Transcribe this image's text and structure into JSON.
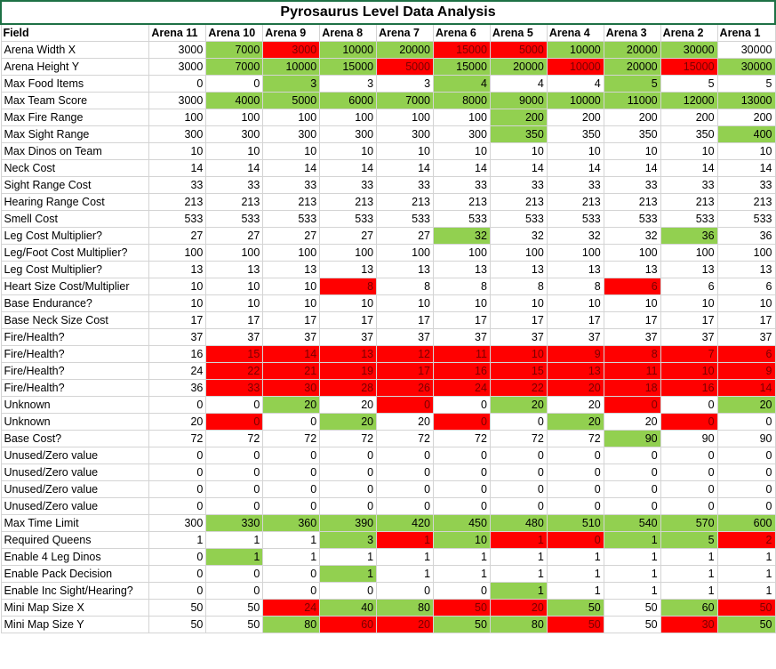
{
  "title": "Pyrosaurus Level Data Analysis",
  "colors": {
    "green": "#92d050",
    "red": "#ff0000",
    "white": "#ffffff"
  },
  "headers": [
    "Field",
    "Arena 11",
    "Arena 10",
    "Arena 9",
    "Arena 8",
    "Arena 7",
    "Arena 6",
    "Arena 5",
    "Arena 4",
    "Arena 3",
    "Arena 2",
    "Arena 1"
  ],
  "rows": [
    {
      "label": "Arena Width X",
      "values": [
        "3000",
        "7000",
        "3000",
        "10000",
        "20000",
        "15000",
        "5000",
        "10000",
        "20000",
        "30000",
        "30000"
      ],
      "fills": [
        "w",
        "g",
        "r",
        "g",
        "g",
        "r",
        "r",
        "g",
        "g",
        "g",
        "w"
      ]
    },
    {
      "label": "Arena Height Y",
      "values": [
        "3000",
        "7000",
        "10000",
        "15000",
        "5000",
        "15000",
        "20000",
        "10000",
        "20000",
        "15000",
        "30000"
      ],
      "fills": [
        "w",
        "g",
        "g",
        "g",
        "r",
        "g",
        "g",
        "r",
        "g",
        "r",
        "g"
      ]
    },
    {
      "label": "Max Food Items",
      "values": [
        "0",
        "0",
        "3",
        "3",
        "3",
        "4",
        "4",
        "4",
        "5",
        "5",
        "5"
      ],
      "fills": [
        "w",
        "w",
        "g",
        "w",
        "w",
        "g",
        "w",
        "w",
        "g",
        "w",
        "w"
      ]
    },
    {
      "label": "Max Team Score",
      "values": [
        "3000",
        "4000",
        "5000",
        "6000",
        "7000",
        "8000",
        "9000",
        "10000",
        "11000",
        "12000",
        "13000"
      ],
      "fills": [
        "w",
        "g",
        "g",
        "g",
        "g",
        "g",
        "g",
        "g",
        "g",
        "g",
        "g"
      ]
    },
    {
      "label": "Max Fire Range",
      "values": [
        "100",
        "100",
        "100",
        "100",
        "100",
        "100",
        "200",
        "200",
        "200",
        "200",
        "200"
      ],
      "fills": [
        "w",
        "w",
        "w",
        "w",
        "w",
        "w",
        "g",
        "w",
        "w",
        "w",
        "w"
      ]
    },
    {
      "label": "Max Sight Range",
      "values": [
        "300",
        "300",
        "300",
        "300",
        "300",
        "300",
        "350",
        "350",
        "350",
        "350",
        "400"
      ],
      "fills": [
        "w",
        "w",
        "w",
        "w",
        "w",
        "w",
        "g",
        "w",
        "w",
        "w",
        "g"
      ]
    },
    {
      "label": "Max Dinos on Team",
      "values": [
        "10",
        "10",
        "10",
        "10",
        "10",
        "10",
        "10",
        "10",
        "10",
        "10",
        "10"
      ],
      "fills": [
        "w",
        "w",
        "w",
        "w",
        "w",
        "w",
        "w",
        "w",
        "w",
        "w",
        "w"
      ]
    },
    {
      "label": "Neck Cost",
      "values": [
        "14",
        "14",
        "14",
        "14",
        "14",
        "14",
        "14",
        "14",
        "14",
        "14",
        "14"
      ],
      "fills": [
        "w",
        "w",
        "w",
        "w",
        "w",
        "w",
        "w",
        "w",
        "w",
        "w",
        "w"
      ]
    },
    {
      "label": "Sight Range Cost",
      "values": [
        "33",
        "33",
        "33",
        "33",
        "33",
        "33",
        "33",
        "33",
        "33",
        "33",
        "33"
      ],
      "fills": [
        "w",
        "w",
        "w",
        "w",
        "w",
        "w",
        "w",
        "w",
        "w",
        "w",
        "w"
      ]
    },
    {
      "label": "Hearing Range Cost",
      "values": [
        "213",
        "213",
        "213",
        "213",
        "213",
        "213",
        "213",
        "213",
        "213",
        "213",
        "213"
      ],
      "fills": [
        "w",
        "w",
        "w",
        "w",
        "w",
        "w",
        "w",
        "w",
        "w",
        "w",
        "w"
      ]
    },
    {
      "label": "Smell Cost",
      "values": [
        "533",
        "533",
        "533",
        "533",
        "533",
        "533",
        "533",
        "533",
        "533",
        "533",
        "533"
      ],
      "fills": [
        "w",
        "w",
        "w",
        "w",
        "w",
        "w",
        "w",
        "w",
        "w",
        "w",
        "w"
      ]
    },
    {
      "label": "Leg Cost Multiplier?",
      "values": [
        "27",
        "27",
        "27",
        "27",
        "27",
        "32",
        "32",
        "32",
        "32",
        "36",
        "36"
      ],
      "fills": [
        "w",
        "w",
        "w",
        "w",
        "w",
        "g",
        "w",
        "w",
        "w",
        "g",
        "w"
      ]
    },
    {
      "label": "Leg/Foot Cost Multiplier?",
      "values": [
        "100",
        "100",
        "100",
        "100",
        "100",
        "100",
        "100",
        "100",
        "100",
        "100",
        "100"
      ],
      "fills": [
        "w",
        "w",
        "w",
        "w",
        "w",
        "w",
        "w",
        "w",
        "w",
        "w",
        "w"
      ]
    },
    {
      "label": "Leg Cost Multiplier?",
      "values": [
        "13",
        "13",
        "13",
        "13",
        "13",
        "13",
        "13",
        "13",
        "13",
        "13",
        "13"
      ],
      "fills": [
        "w",
        "w",
        "w",
        "w",
        "w",
        "w",
        "w",
        "w",
        "w",
        "w",
        "w"
      ]
    },
    {
      "label": "Heart Size Cost/Multiplier",
      "values": [
        "10",
        "10",
        "10",
        "8",
        "8",
        "8",
        "8",
        "8",
        "6",
        "6",
        "6"
      ],
      "fills": [
        "w",
        "w",
        "w",
        "r",
        "w",
        "w",
        "w",
        "w",
        "r",
        "w",
        "w"
      ]
    },
    {
      "label": "Base Endurance?",
      "values": [
        "10",
        "10",
        "10",
        "10",
        "10",
        "10",
        "10",
        "10",
        "10",
        "10",
        "10"
      ],
      "fills": [
        "w",
        "w",
        "w",
        "w",
        "w",
        "w",
        "w",
        "w",
        "w",
        "w",
        "w"
      ]
    },
    {
      "label": "Base Neck Size Cost",
      "values": [
        "17",
        "17",
        "17",
        "17",
        "17",
        "17",
        "17",
        "17",
        "17",
        "17",
        "17"
      ],
      "fills": [
        "w",
        "w",
        "w",
        "w",
        "w",
        "w",
        "w",
        "w",
        "w",
        "w",
        "w"
      ]
    },
    {
      "label": "Fire/Health?",
      "values": [
        "37",
        "37",
        "37",
        "37",
        "37",
        "37",
        "37",
        "37",
        "37",
        "37",
        "37"
      ],
      "fills": [
        "w",
        "w",
        "w",
        "w",
        "w",
        "w",
        "w",
        "w",
        "w",
        "w",
        "w"
      ]
    },
    {
      "label": "Fire/Health?",
      "values": [
        "16",
        "15",
        "14",
        "13",
        "12",
        "11",
        "10",
        "9",
        "8",
        "7",
        "6"
      ],
      "fills": [
        "w",
        "r",
        "r",
        "r",
        "r",
        "r",
        "r",
        "r",
        "r",
        "r",
        "r"
      ]
    },
    {
      "label": "Fire/Health?",
      "values": [
        "24",
        "22",
        "21",
        "19",
        "17",
        "16",
        "15",
        "13",
        "11",
        "10",
        "9"
      ],
      "fills": [
        "w",
        "r",
        "r",
        "r",
        "r",
        "r",
        "r",
        "r",
        "r",
        "r",
        "r"
      ]
    },
    {
      "label": "Fire/Health?",
      "values": [
        "36",
        "33",
        "30",
        "28",
        "26",
        "24",
        "22",
        "20",
        "18",
        "16",
        "14"
      ],
      "fills": [
        "w",
        "r",
        "r",
        "r",
        "r",
        "r",
        "r",
        "r",
        "r",
        "r",
        "r"
      ]
    },
    {
      "label": "Unknown",
      "values": [
        "0",
        "0",
        "20",
        "20",
        "0",
        "0",
        "20",
        "20",
        "0",
        "0",
        "20"
      ],
      "fills": [
        "w",
        "w",
        "g",
        "w",
        "r",
        "w",
        "g",
        "w",
        "r",
        "w",
        "g"
      ]
    },
    {
      "label": "Unknown",
      "values": [
        "20",
        "0",
        "0",
        "20",
        "20",
        "0",
        "0",
        "20",
        "20",
        "0",
        "0"
      ],
      "fills": [
        "w",
        "r",
        "w",
        "g",
        "w",
        "r",
        "w",
        "g",
        "w",
        "r",
        "w"
      ]
    },
    {
      "label": "Base Cost?",
      "values": [
        "72",
        "72",
        "72",
        "72",
        "72",
        "72",
        "72",
        "72",
        "90",
        "90",
        "90"
      ],
      "fills": [
        "w",
        "w",
        "w",
        "w",
        "w",
        "w",
        "w",
        "w",
        "g",
        "w",
        "w"
      ]
    },
    {
      "label": "Unused/Zero value",
      "values": [
        "0",
        "0",
        "0",
        "0",
        "0",
        "0",
        "0",
        "0",
        "0",
        "0",
        "0"
      ],
      "fills": [
        "w",
        "w",
        "w",
        "w",
        "w",
        "w",
        "w",
        "w",
        "w",
        "w",
        "w"
      ]
    },
    {
      "label": "Unused/Zero value",
      "values": [
        "0",
        "0",
        "0",
        "0",
        "0",
        "0",
        "0",
        "0",
        "0",
        "0",
        "0"
      ],
      "fills": [
        "w",
        "w",
        "w",
        "w",
        "w",
        "w",
        "w",
        "w",
        "w",
        "w",
        "w"
      ]
    },
    {
      "label": "Unused/Zero value",
      "values": [
        "0",
        "0",
        "0",
        "0",
        "0",
        "0",
        "0",
        "0",
        "0",
        "0",
        "0"
      ],
      "fills": [
        "w",
        "w",
        "w",
        "w",
        "w",
        "w",
        "w",
        "w",
        "w",
        "w",
        "w"
      ]
    },
    {
      "label": "Unused/Zero value",
      "values": [
        "0",
        "0",
        "0",
        "0",
        "0",
        "0",
        "0",
        "0",
        "0",
        "0",
        "0"
      ],
      "fills": [
        "w",
        "w",
        "w",
        "w",
        "w",
        "w",
        "w",
        "w",
        "w",
        "w",
        "w"
      ]
    },
    {
      "label": "Max Time Limit",
      "values": [
        "300",
        "330",
        "360",
        "390",
        "420",
        "450",
        "480",
        "510",
        "540",
        "570",
        "600"
      ],
      "fills": [
        "w",
        "g",
        "g",
        "g",
        "g",
        "g",
        "g",
        "g",
        "g",
        "g",
        "g"
      ]
    },
    {
      "label": "Required Queens",
      "values": [
        "1",
        "1",
        "1",
        "3",
        "1",
        "10",
        "1",
        "0",
        "1",
        "5",
        "2"
      ],
      "fills": [
        "w",
        "w",
        "w",
        "g",
        "r",
        "g",
        "r",
        "r",
        "g",
        "g",
        "r"
      ]
    },
    {
      "label": "Enable 4 Leg Dinos",
      "values": [
        "0",
        "1",
        "1",
        "1",
        "1",
        "1",
        "1",
        "1",
        "1",
        "1",
        "1"
      ],
      "fills": [
        "w",
        "g",
        "w",
        "w",
        "w",
        "w",
        "w",
        "w",
        "w",
        "w",
        "w"
      ]
    },
    {
      "label": "Enable Pack Decision",
      "values": [
        "0",
        "0",
        "0",
        "1",
        "1",
        "1",
        "1",
        "1",
        "1",
        "1",
        "1"
      ],
      "fills": [
        "w",
        "w",
        "w",
        "g",
        "w",
        "w",
        "w",
        "w",
        "w",
        "w",
        "w"
      ]
    },
    {
      "label": "Enable Inc Sight/Hearing?",
      "values": [
        "0",
        "0",
        "0",
        "0",
        "0",
        "0",
        "1",
        "1",
        "1",
        "1",
        "1"
      ],
      "fills": [
        "w",
        "w",
        "w",
        "w",
        "w",
        "w",
        "g",
        "w",
        "w",
        "w",
        "w"
      ]
    },
    {
      "label": "Mini Map Size X",
      "values": [
        "50",
        "50",
        "24",
        "40",
        "80",
        "50",
        "20",
        "50",
        "50",
        "60",
        "50"
      ],
      "fills": [
        "w",
        "w",
        "r",
        "g",
        "g",
        "r",
        "r",
        "g",
        "w",
        "g",
        "r"
      ]
    },
    {
      "label": "Mini Map Size Y",
      "values": [
        "50",
        "50",
        "80",
        "60",
        "20",
        "50",
        "80",
        "50",
        "50",
        "30",
        "50"
      ],
      "fills": [
        "w",
        "w",
        "g",
        "r",
        "r",
        "g",
        "g",
        "r",
        "w",
        "r",
        "g"
      ]
    }
  ]
}
